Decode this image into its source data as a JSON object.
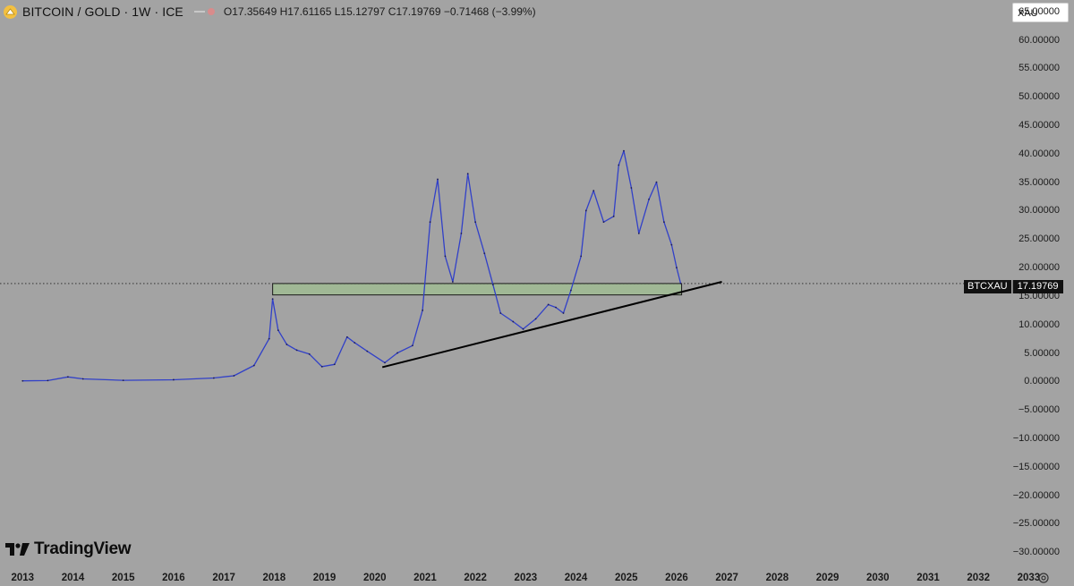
{
  "legend": {
    "title": "BITCOIN / GOLD · 1W · ICE",
    "ohlc": "O17.35649 H17.61165 L15.12797 C17.19769 −0.71468 (−3.99%)"
  },
  "symbol_search": {
    "value": "XAU"
  },
  "branding": {
    "name": "TradingView"
  },
  "price_label": {
    "symbol": "BTCXAU",
    "value": "17.19769"
  },
  "icons": {
    "logo": "bitcoin-gold-logo-icon",
    "settings": "gear-icon",
    "brand": "tradingview-logo-icon"
  },
  "colors": {
    "background": "#a3a3a3",
    "series": "#3140c8",
    "zone_fill": "#9fbf90",
    "trendline": "#000000"
  },
  "chart_data": {
    "type": "line",
    "series": [
      {
        "name": "BTCXAU",
        "points": [
          [
            2013.0,
            0.1
          ],
          [
            2013.5,
            0.15
          ],
          [
            2013.9,
            0.8
          ],
          [
            2014.2,
            0.45
          ],
          [
            2015.0,
            0.2
          ],
          [
            2016.0,
            0.3
          ],
          [
            2016.8,
            0.6
          ],
          [
            2017.2,
            1.0
          ],
          [
            2017.6,
            2.8
          ],
          [
            2017.9,
            7.5
          ],
          [
            2017.97,
            14.5
          ],
          [
            2018.08,
            9.0
          ],
          [
            2018.25,
            6.5
          ],
          [
            2018.45,
            5.5
          ],
          [
            2018.7,
            4.8
          ],
          [
            2018.95,
            2.6
          ],
          [
            2019.2,
            3.0
          ],
          [
            2019.45,
            7.8
          ],
          [
            2019.6,
            6.8
          ],
          [
            2019.85,
            5.3
          ],
          [
            2020.2,
            3.3
          ],
          [
            2020.45,
            5.0
          ],
          [
            2020.75,
            6.3
          ],
          [
            2020.95,
            12.5
          ],
          [
            2021.1,
            28.0
          ],
          [
            2021.25,
            35.5
          ],
          [
            2021.4,
            22.0
          ],
          [
            2021.55,
            17.5
          ],
          [
            2021.72,
            26.0
          ],
          [
            2021.85,
            36.5
          ],
          [
            2022.0,
            28.0
          ],
          [
            2022.18,
            22.5
          ],
          [
            2022.35,
            17.0
          ],
          [
            2022.5,
            12.0
          ],
          [
            2022.75,
            10.5
          ],
          [
            2022.95,
            9.2
          ],
          [
            2023.2,
            11.0
          ],
          [
            2023.45,
            13.5
          ],
          [
            2023.6,
            13.0
          ],
          [
            2023.75,
            12.0
          ],
          [
            2023.9,
            16.0
          ],
          [
            2024.1,
            22.0
          ],
          [
            2024.2,
            30.0
          ],
          [
            2024.35,
            33.5
          ],
          [
            2024.55,
            28.0
          ],
          [
            2024.75,
            29.0
          ],
          [
            2024.85,
            38.0
          ],
          [
            2024.95,
            40.5
          ],
          [
            2025.1,
            34.0
          ],
          [
            2025.25,
            26.0
          ],
          [
            2025.45,
            32.0
          ],
          [
            2025.6,
            35.0
          ],
          [
            2025.75,
            28.0
          ],
          [
            2025.9,
            24.0
          ],
          [
            2026.0,
            20.0
          ],
          [
            2026.08,
            17.2
          ]
        ]
      }
    ],
    "price_axis_labels": [
      "65.00000",
      "60.00000",
      "55.00000",
      "50.00000",
      "45.00000",
      "40.00000",
      "35.00000",
      "30.00000",
      "25.00000",
      "20.00000",
      "15.00000",
      "10.00000",
      "5.00000",
      "0.00000",
      "−5.00000",
      "−10.00000",
      "−15.00000",
      "−20.00000",
      "−25.00000",
      "−30.00000"
    ],
    "price_ticks": [
      65,
      60,
      55,
      50,
      45,
      40,
      35,
      30,
      25,
      20,
      15,
      10,
      5,
      0,
      -5,
      -10,
      -15,
      -20,
      -25,
      -30
    ],
    "time_axis_labels": [
      "2013",
      "2014",
      "2015",
      "2016",
      "2017",
      "2018",
      "2019",
      "2020",
      "2021",
      "2022",
      "2023",
      "2024",
      "2025",
      "2026",
      "2027",
      "2028",
      "2029",
      "2030",
      "2031",
      "2032",
      "2033"
    ],
    "ylim": [
      -32,
      67
    ],
    "xlim": [
      2012.55,
      2033.9
    ],
    "scale": "linear",
    "grid": false,
    "current_price": 17.19769,
    "support_zone": {
      "x_start": 2017.97,
      "x_end": 2026.1,
      "y_low": 15.2,
      "y_high": 17.2
    },
    "trendline": {
      "start": [
        2020.15,
        2.5
      ],
      "end": [
        2026.9,
        17.5
      ]
    }
  }
}
